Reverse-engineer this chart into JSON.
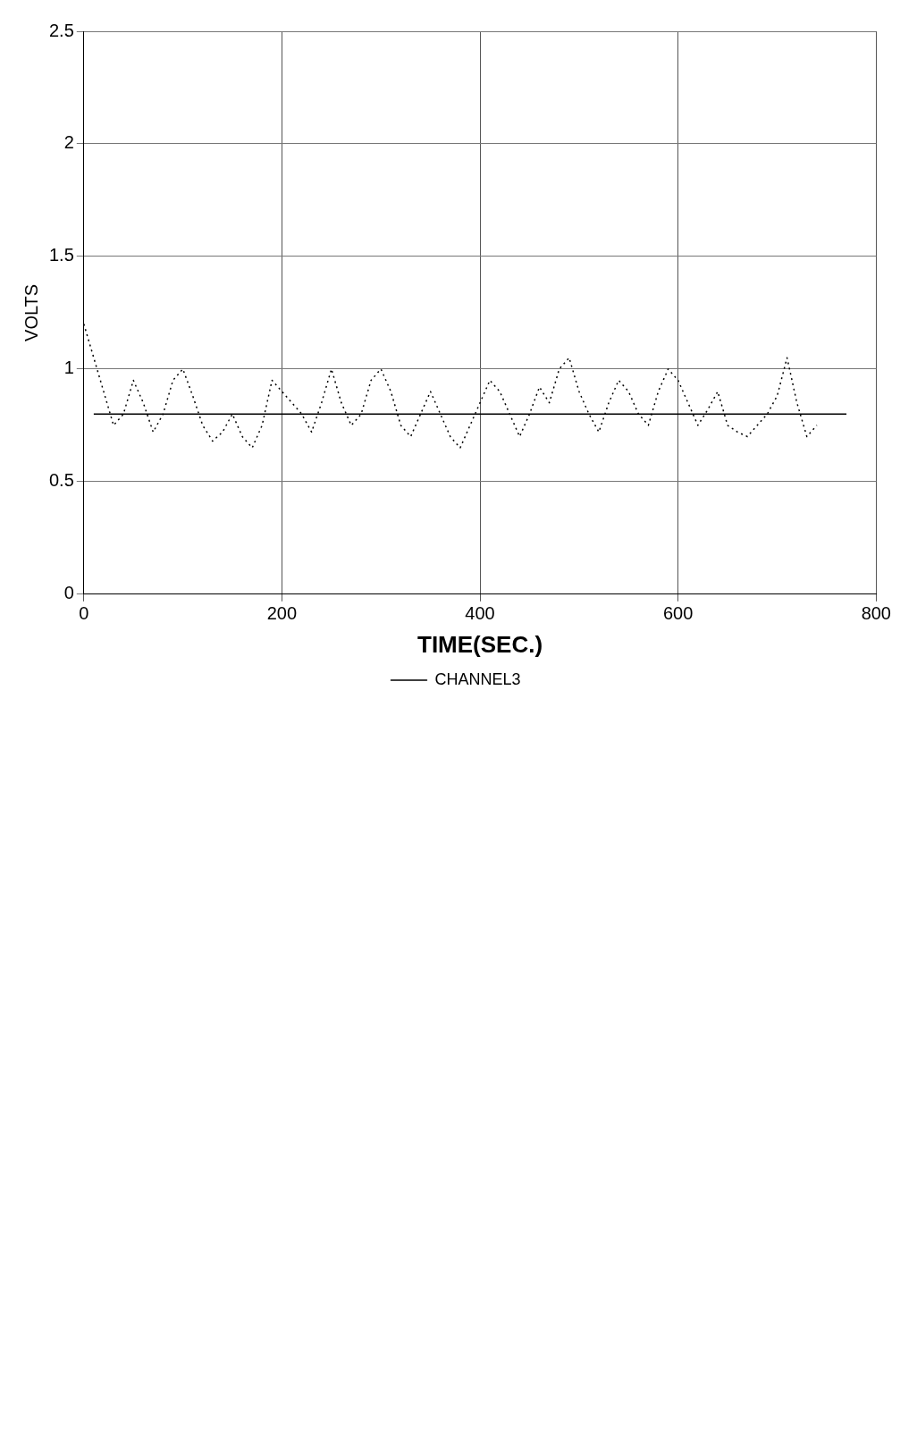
{
  "chart_data": {
    "type": "line",
    "xlabel": "TIME(SEC.)",
    "ylabel": "VOLTS",
    "xlim": [
      0,
      800
    ],
    "xticks": [
      0,
      200,
      400,
      600,
      800
    ],
    "ylim": [
      0,
      2.5
    ],
    "yticks": [
      0,
      0.5,
      1,
      1.5,
      2,
      2.5
    ],
    "grid": true,
    "legend": "bottom",
    "marker": "none",
    "series": [
      {
        "color": "#000000",
        "line_style": "dotted",
        "x": [
          0,
          10,
          20,
          30,
          40,
          50,
          60,
          70,
          80,
          90,
          100,
          110,
          120,
          130,
          140,
          150,
          160,
          170,
          180,
          190,
          200,
          210,
          220,
          230,
          240,
          250,
          260,
          270,
          280,
          290,
          300,
          310,
          320,
          330,
          340,
          350,
          360,
          370,
          380,
          390,
          400,
          410,
          420,
          430,
          440,
          450,
          460,
          470,
          480,
          490,
          500,
          510,
          520,
          530,
          540,
          550,
          560,
          570,
          580,
          590,
          600,
          610,
          620,
          630,
          640,
          650,
          660,
          670,
          680,
          690,
          700,
          710,
          720,
          730,
          740
        ],
        "values": [
          1.2,
          1.05,
          0.9,
          0.75,
          0.8,
          0.95,
          0.85,
          0.72,
          0.8,
          0.95,
          1.0,
          0.88,
          0.75,
          0.68,
          0.72,
          0.8,
          0.7,
          0.65,
          0.75,
          0.95,
          0.9,
          0.85,
          0.8,
          0.72,
          0.85,
          1.0,
          0.85,
          0.75,
          0.8,
          0.95,
          1.0,
          0.9,
          0.75,
          0.7,
          0.8,
          0.9,
          0.8,
          0.7,
          0.65,
          0.75,
          0.85,
          0.95,
          0.9,
          0.8,
          0.7,
          0.8,
          0.92,
          0.85,
          1.0,
          1.05,
          0.9,
          0.8,
          0.72,
          0.85,
          0.95,
          0.9,
          0.8,
          0.75,
          0.9,
          1.0,
          0.95,
          0.85,
          0.75,
          0.82,
          0.9,
          0.75,
          0.72,
          0.7,
          0.75,
          0.8,
          0.88,
          1.05,
          0.85,
          0.7,
          0.75
        ]
      },
      {
        "name": "CHANNEL3",
        "color": "#000000",
        "line_style": "solid",
        "x": [
          10,
          770
        ],
        "values": [
          0.8,
          0.8
        ]
      }
    ]
  }
}
